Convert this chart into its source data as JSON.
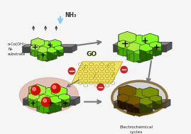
{
  "bg_color": "#f5f5f5",
  "nh3_label": "NH₃",
  "go_label": "GO",
  "ec_label": "Electrochemical\ncycles",
  "alpha_label": "α-Co(OH)₂\nNi-\nsubstrate",
  "green_bright": "#66ee00",
  "green_mid": "#44aa00",
  "green_dark": "#226600",
  "green_light": "#aaee44",
  "green_top": "#88ff22",
  "olive_top": "#88aa00",
  "olive_mid": "#557700",
  "olive_dark": "#334400",
  "brown_top": "#886600",
  "brown_mid": "#664400",
  "brown_dark": "#221100",
  "brown_side": "#553300",
  "gray_sub_top": "#888888",
  "gray_sub_side": "#555555",
  "gray_sub_front": "#444444",
  "pink_wrap": "#ddb0a0",
  "red_sphere": "#cc1100",
  "go_bg": "#f0e060",
  "nh3_arrow": "#88ccee",
  "arrow_gray": "#777777"
}
